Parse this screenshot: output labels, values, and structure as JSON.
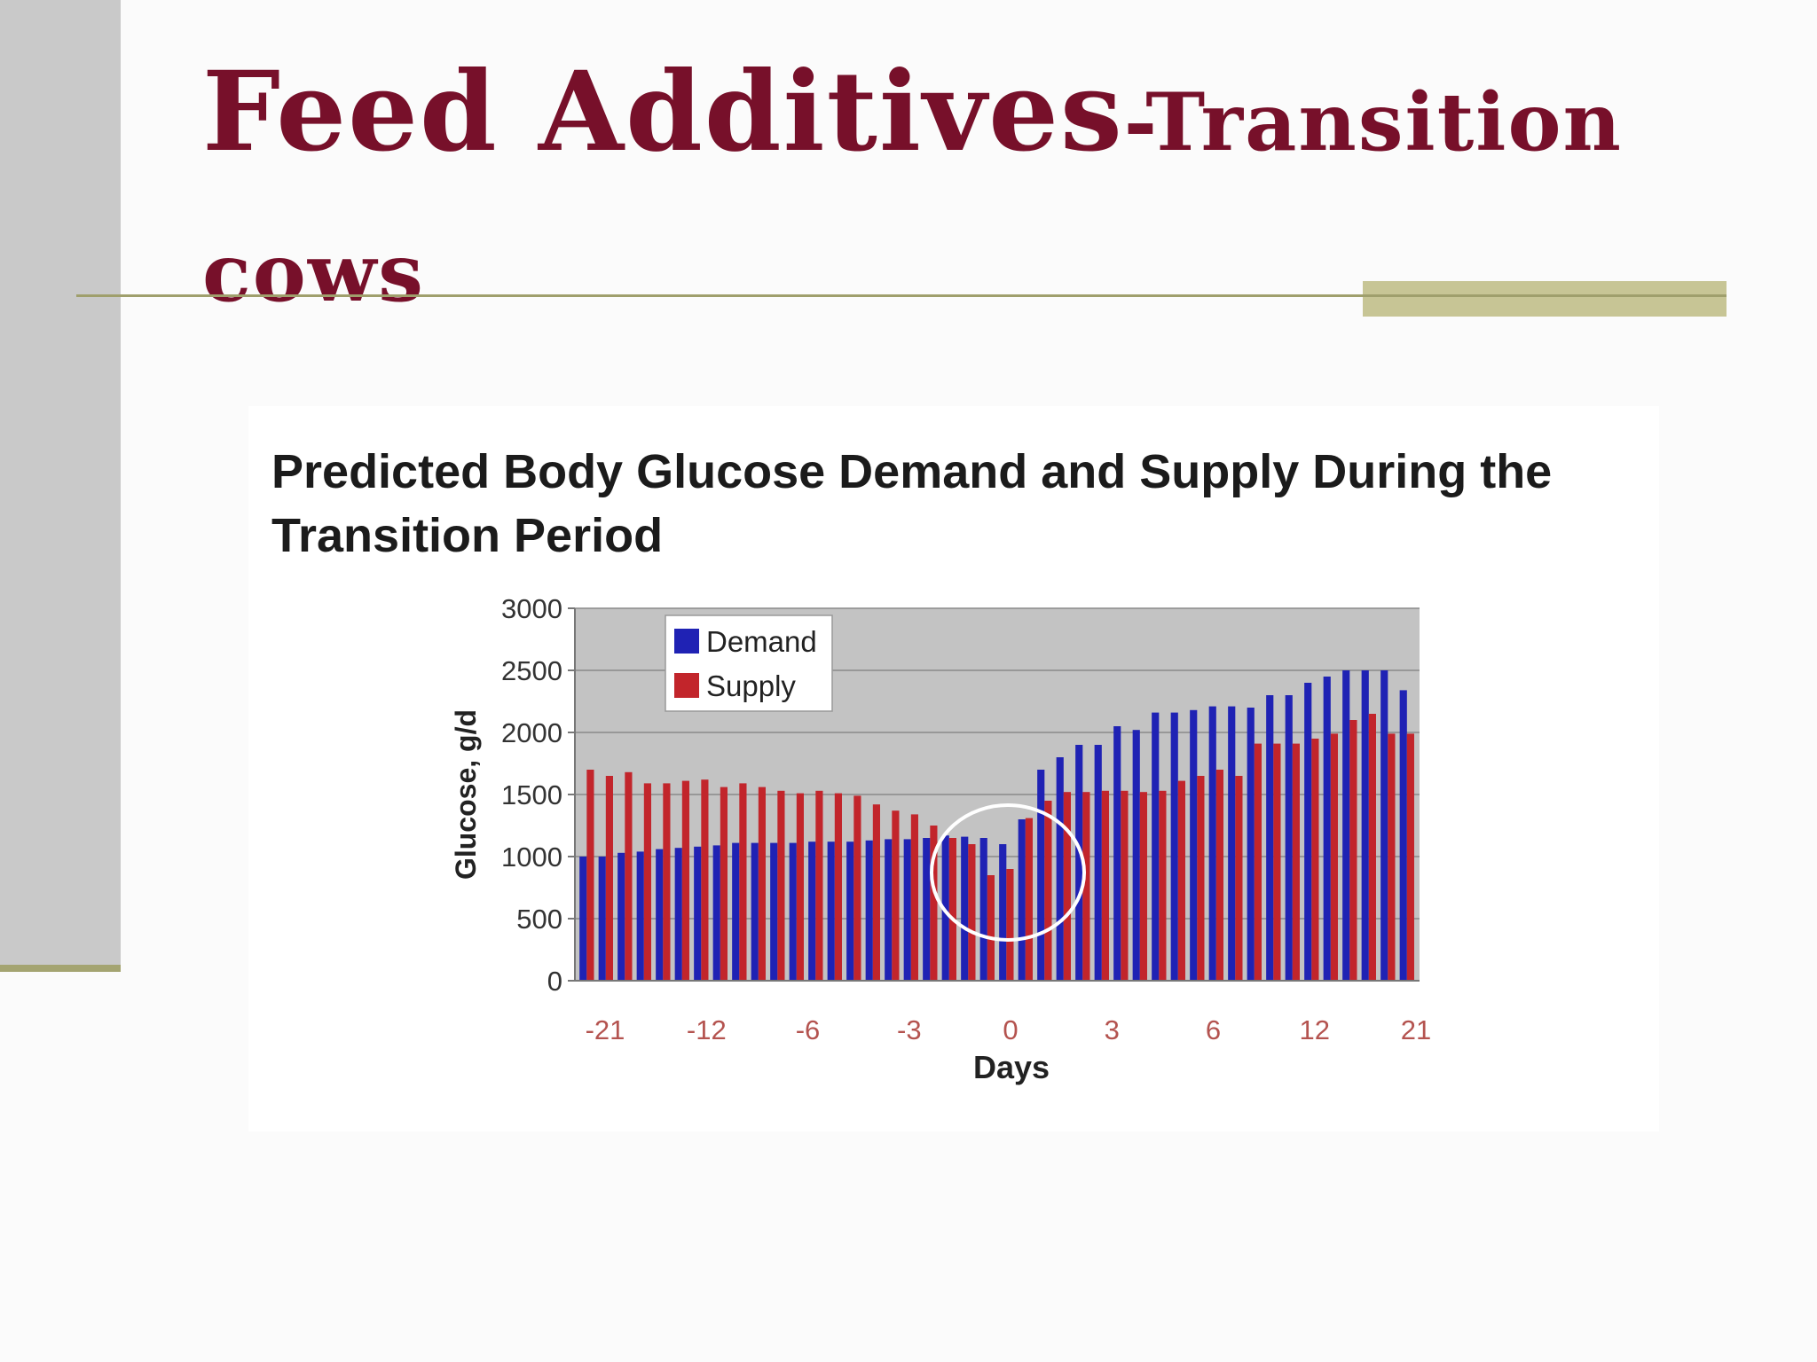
{
  "slide": {
    "title_main": "Feed Additives",
    "title_rest": "-Transition cows"
  },
  "colors": {
    "title": "#77102a",
    "demand": "#1f22b4",
    "supply": "#c2252b",
    "plot_background": "#c3c3c3"
  },
  "chart_data": {
    "type": "bar",
    "title": "Predicted Body Glucose Demand and Supply During the Transition Period",
    "xlabel": "Days",
    "ylabel": "Glucose, g/d",
    "ylim": [
      0,
      3000
    ],
    "yticks": [
      0,
      500,
      1000,
      1500,
      2000,
      2500,
      3000
    ],
    "xtick_labels": [
      "-21",
      "-12",
      "-6",
      "-3",
      "0",
      "3",
      "6",
      "12",
      "21"
    ],
    "grid": true,
    "legend": {
      "position": "top-left",
      "entries": [
        "Demand",
        "Supply"
      ]
    },
    "annotation": "white circle around day 0",
    "series": [
      {
        "name": "Demand",
        "values": [
          1000,
          1000,
          1030,
          1040,
          1060,
          1070,
          1080,
          1090,
          1110,
          1110,
          1110,
          1110,
          1120,
          1120,
          1120,
          1130,
          1140,
          1140,
          1150,
          1170,
          1160,
          1150,
          1100,
          1300,
          1700,
          1800,
          1900,
          1900,
          2050,
          2020,
          2160,
          2160,
          2180,
          2210,
          2210,
          2200,
          2300,
          2300,
          2400,
          2450,
          2500,
          2500,
          2500,
          2340
        ]
      },
      {
        "name": "Supply",
        "values": [
          1700,
          1650,
          1680,
          1590,
          1590,
          1610,
          1620,
          1560,
          1590,
          1560,
          1530,
          1510,
          1530,
          1510,
          1490,
          1420,
          1370,
          1340,
          1250,
          1150,
          1100,
          850,
          900,
          1310,
          1450,
          1520,
          1520,
          1530,
          1530,
          1520,
          1530,
          1610,
          1650,
          1700,
          1650,
          1910,
          1910,
          1910,
          1950,
          1990,
          2100,
          2150,
          1990,
          1990
        ]
      }
    ]
  }
}
